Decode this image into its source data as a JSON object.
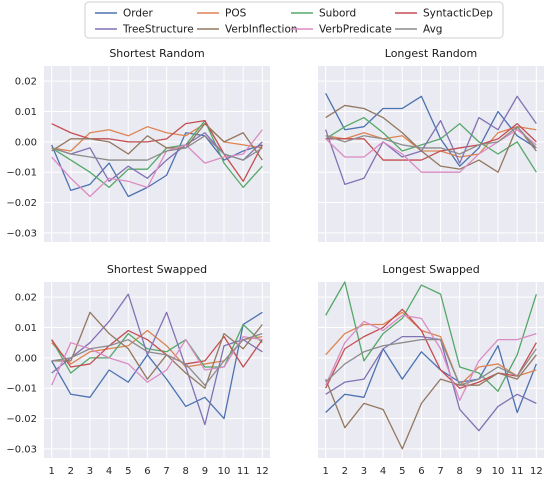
{
  "colors": {
    "panel_background": "#eaeaf2",
    "grid": "#ffffff",
    "page_background": "#ffffff"
  },
  "legend": {
    "location": "top-center",
    "entries": [
      {
        "name": "Order",
        "color": "#4c72b0"
      },
      {
        "name": "POS",
        "color": "#dd8452"
      },
      {
        "name": "Subord",
        "color": "#55a868"
      },
      {
        "name": "SyntacticDep",
        "color": "#c44e52"
      },
      {
        "name": "TreeStructure",
        "color": "#8172b3"
      },
      {
        "name": "VerbInflection",
        "color": "#937860"
      },
      {
        "name": "VerbPredicate",
        "color": "#da8bc3"
      },
      {
        "name": "Avg",
        "color": "#8c8c8c"
      }
    ]
  },
  "chart_data": [
    {
      "type": "line",
      "title": "Shortest Random",
      "x": [
        1,
        2,
        3,
        4,
        5,
        6,
        7,
        8,
        9,
        10,
        11,
        12
      ],
      "ylim": [
        -0.033,
        0.025
      ],
      "yticks": [
        -0.03,
        -0.02,
        -0.01,
        0.0,
        0.01,
        0.02
      ],
      "ytick_labels": [
        "−0.03",
        "−0.02",
        "−0.01",
        "0.00",
        "0.01",
        "0.02"
      ],
      "xtick_labels": [],
      "grid": true,
      "series": [
        {
          "name": "Order",
          "values": [
            -0.001,
            -0.016,
            -0.014,
            -0.007,
            -0.018,
            -0.015,
            -0.011,
            0.003,
            0.002,
            -0.006,
            -0.003,
            -0.001
          ]
        },
        {
          "name": "POS",
          "values": [
            -0.002,
            -0.003,
            0.003,
            0.004,
            0.002,
            0.005,
            0.003,
            0.002,
            0.006,
            0.0,
            -0.001,
            -0.002
          ]
        },
        {
          "name": "Subord",
          "values": [
            -0.002,
            -0.006,
            -0.01,
            -0.015,
            -0.009,
            -0.009,
            -0.002,
            -0.001,
            0.007,
            -0.007,
            -0.015,
            -0.008
          ]
        },
        {
          "name": "SyntacticDep",
          "values": [
            0.006,
            0.003,
            0.001,
            0.001,
            0.0,
            0.0,
            0.001,
            0.006,
            0.007,
            -0.004,
            -0.013,
            -0.001
          ]
        },
        {
          "name": "TreeStructure",
          "values": [
            -0.002,
            -0.004,
            -0.002,
            -0.013,
            -0.008,
            -0.012,
            -0.006,
            -0.001,
            0.003,
            -0.004,
            -0.006,
            0.0
          ]
        },
        {
          "name": "VerbInflection",
          "values": [
            -0.003,
            0.001,
            0.001,
            0.0,
            -0.004,
            0.002,
            -0.002,
            -0.002,
            0.006,
            0.0,
            0.003,
            -0.006
          ]
        },
        {
          "name": "VerbPredicate",
          "values": [
            -0.005,
            -0.012,
            -0.018,
            -0.012,
            -0.013,
            -0.015,
            -0.003,
            -0.001,
            -0.007,
            -0.005,
            -0.004,
            0.004
          ]
        },
        {
          "name": "Avg",
          "values": [
            -0.002,
            -0.004,
            -0.005,
            -0.006,
            -0.006,
            -0.006,
            -0.003,
            -0.002,
            0.002,
            -0.004,
            -0.006,
            -0.002
          ]
        }
      ]
    },
    {
      "type": "line",
      "title": "Longest Random",
      "x": [
        1,
        2,
        3,
        4,
        5,
        6,
        7,
        8,
        9,
        10,
        11,
        12
      ],
      "ylim": [
        -0.033,
        0.025
      ],
      "yticks": [
        -0.03,
        -0.02,
        -0.01,
        0.0,
        0.01,
        0.02
      ],
      "ytick_labels": [],
      "xtick_labels": [],
      "grid": true,
      "series": [
        {
          "name": "Order",
          "values": [
            0.016,
            0.004,
            0.005,
            0.011,
            0.011,
            0.015,
            0.001,
            -0.008,
            -0.002,
            0.01,
            0.002,
            -0.002
          ]
        },
        {
          "name": "POS",
          "values": [
            0.002,
            0.001,
            0.003,
            0.001,
            0.002,
            -0.003,
            -0.003,
            -0.005,
            -0.004,
            0.003,
            0.005,
            0.004
          ]
        },
        {
          "name": "Subord",
          "values": [
            0.001,
            0.005,
            0.008,
            0.003,
            -0.003,
            -0.001,
            0.001,
            0.006,
            0.0,
            -0.004,
            0.0,
            -0.01
          ]
        },
        {
          "name": "SyntacticDep",
          "values": [
            0.001,
            0.001,
            0.001,
            -0.006,
            -0.006,
            -0.006,
            -0.003,
            -0.002,
            -0.001,
            0.001,
            0.006,
            0.0
          ]
        },
        {
          "name": "TreeStructure",
          "values": [
            0.004,
            -0.014,
            -0.012,
            0.0,
            -0.005,
            -0.003,
            0.007,
            -0.007,
            0.008,
            0.004,
            0.015,
            0.006
          ]
        },
        {
          "name": "VerbInflection",
          "values": [
            0.008,
            0.012,
            0.011,
            0.008,
            0.003,
            -0.003,
            -0.008,
            -0.009,
            -0.006,
            -0.01,
            0.005,
            -0.003
          ]
        },
        {
          "name": "VerbPredicate",
          "values": [
            0.001,
            -0.005,
            -0.005,
            0.0,
            -0.004,
            -0.01,
            -0.01,
            -0.01,
            -0.004,
            0.0,
            0.004,
            -0.001
          ]
        },
        {
          "name": "Avg",
          "values": [
            0.002,
            0.0,
            0.002,
            0.001,
            -0.001,
            -0.002,
            -0.002,
            -0.004,
            -0.001,
            0.0,
            0.005,
            -0.002
          ]
        }
      ]
    },
    {
      "type": "line",
      "title": "Shortest Swapped",
      "x": [
        1,
        2,
        3,
        4,
        5,
        6,
        7,
        8,
        9,
        10,
        11,
        12
      ],
      "ylim": [
        -0.033,
        0.025
      ],
      "yticks": [
        -0.03,
        -0.02,
        -0.01,
        0.0,
        0.01,
        0.02
      ],
      "ytick_labels": [
        "−0.03",
        "−0.02",
        "−0.01",
        "0.00",
        "0.01",
        "0.02"
      ],
      "xtick_labels": [
        "1",
        "2",
        "3",
        "4",
        "5",
        "6",
        "7",
        "8",
        "9",
        "10",
        "11",
        "12"
      ],
      "grid": true,
      "series": [
        {
          "name": "Order",
          "values": [
            -0.001,
            -0.012,
            -0.013,
            -0.004,
            -0.008,
            0.001,
            -0.007,
            -0.016,
            -0.013,
            -0.02,
            0.011,
            0.015
          ]
        },
        {
          "name": "POS",
          "values": [
            0.005,
            -0.002,
            0.002,
            0.003,
            0.004,
            0.009,
            0.004,
            -0.003,
            -0.002,
            -0.001,
            0.006,
            0.007
          ]
        },
        {
          "name": "Subord",
          "values": [
            0.006,
            -0.005,
            0.0,
            0.0,
            0.008,
            0.003,
            0.002,
            0.006,
            -0.003,
            -0.003,
            0.011,
            0.005
          ]
        },
        {
          "name": "SyntacticDep",
          "values": [
            0.006,
            -0.003,
            -0.002,
            0.004,
            0.009,
            0.006,
            0.001,
            -0.002,
            -0.001,
            0.007,
            -0.003,
            0.006
          ]
        },
        {
          "name": "TreeStructure",
          "values": [
            -0.005,
            0.0,
            0.005,
            0.012,
            0.021,
            0.001,
            0.015,
            -0.003,
            -0.022,
            0.004,
            0.006,
            0.002
          ]
        },
        {
          "name": "VerbInflection",
          "values": [
            -0.001,
            -0.001,
            0.015,
            0.008,
            0.003,
            -0.007,
            0.001,
            -0.005,
            -0.01,
            0.008,
            0.003,
            0.011
          ]
        },
        {
          "name": "VerbPredicate",
          "values": [
            -0.009,
            0.005,
            0.003,
            0.0,
            -0.002,
            -0.008,
            -0.004,
            0.006,
            -0.004,
            -0.003,
            0.007,
            0.006
          ]
        },
        {
          "name": "Avg",
          "values": [
            -0.001,
            0.0,
            0.003,
            0.004,
            0.006,
            0.002,
            0.001,
            -0.002,
            -0.009,
            -0.001,
            0.006,
            0.008
          ]
        }
      ]
    },
    {
      "type": "line",
      "title": "Longest Swapped",
      "x": [
        1,
        2,
        3,
        4,
        5,
        6,
        7,
        8,
        9,
        10,
        11,
        12
      ],
      "ylim": [
        -0.033,
        0.025
      ],
      "yticks": [
        -0.03,
        -0.02,
        -0.01,
        0.0,
        0.01,
        0.02
      ],
      "ytick_labels": [],
      "xtick_labels": [
        "1",
        "2",
        "3",
        "4",
        "5",
        "6",
        "7",
        "8",
        "9",
        "10",
        "11",
        "12"
      ],
      "grid": true,
      "series": [
        {
          "name": "Order",
          "values": [
            -0.018,
            -0.012,
            -0.013,
            0.003,
            -0.007,
            0.002,
            -0.004,
            -0.008,
            -0.007,
            0.004,
            -0.018,
            -0.002
          ]
        },
        {
          "name": "POS",
          "values": [
            0.001,
            0.008,
            0.011,
            0.011,
            0.015,
            0.009,
            0.007,
            -0.009,
            -0.003,
            -0.002,
            -0.006,
            -0.004
          ]
        },
        {
          "name": "Subord",
          "values": [
            0.014,
            0.025,
            -0.001,
            0.008,
            0.013,
            0.024,
            0.021,
            -0.003,
            -0.005,
            -0.011,
            0.001,
            0.021
          ]
        },
        {
          "name": "SyntacticDep",
          "values": [
            -0.01,
            0.003,
            0.007,
            0.01,
            0.016,
            0.009,
            -0.004,
            -0.01,
            -0.008,
            -0.005,
            -0.006,
            0.005
          ]
        },
        {
          "name": "TreeStructure",
          "values": [
            -0.012,
            -0.008,
            -0.007,
            0.003,
            0.007,
            0.007,
            0.006,
            -0.017,
            -0.024,
            -0.016,
            -0.012,
            -0.015
          ]
        },
        {
          "name": "VerbInflection",
          "values": [
            -0.007,
            -0.023,
            -0.015,
            -0.017,
            -0.03,
            -0.015,
            -0.007,
            -0.009,
            -0.009,
            -0.005,
            -0.007,
            0.001
          ]
        },
        {
          "name": "VerbPredicate",
          "values": [
            -0.009,
            0.005,
            0.012,
            0.009,
            0.014,
            0.013,
            0.003,
            -0.014,
            -0.001,
            0.006,
            0.006,
            0.008
          ]
        },
        {
          "name": "Avg",
          "values": [
            -0.008,
            -0.002,
            0.002,
            0.004,
            0.005,
            0.006,
            0.006,
            -0.009,
            -0.007,
            -0.003,
            -0.006,
            0.003
          ]
        }
      ]
    }
  ]
}
